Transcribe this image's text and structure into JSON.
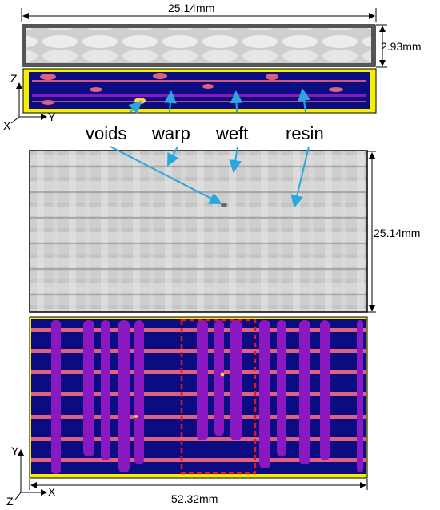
{
  "dimensions": {
    "top_width": "25.14mm",
    "top_thickness": "2.93mm",
    "mid_height": "25.14mm",
    "bottom_width": "52.32mm"
  },
  "callouts": {
    "voids": "voids",
    "warp": "warp",
    "weft": "weft",
    "resin": "resin"
  },
  "axes": {
    "top": {
      "vertical": "Z",
      "horizontal": "Y",
      "origin": "X"
    },
    "bottom": {
      "vertical": "Y",
      "horizontal": "X",
      "origin": "Z"
    }
  },
  "colors": {
    "matrix": "#0c0c82",
    "warp_tow": "#8a18c0",
    "weft_tow": "#e06080",
    "edge_resin": "#f5f000",
    "void_highlight": "#ffd040",
    "callout_arrow": "#29a8e0",
    "roi_box": "#e01818",
    "ct_background": "#bdbdbd"
  }
}
